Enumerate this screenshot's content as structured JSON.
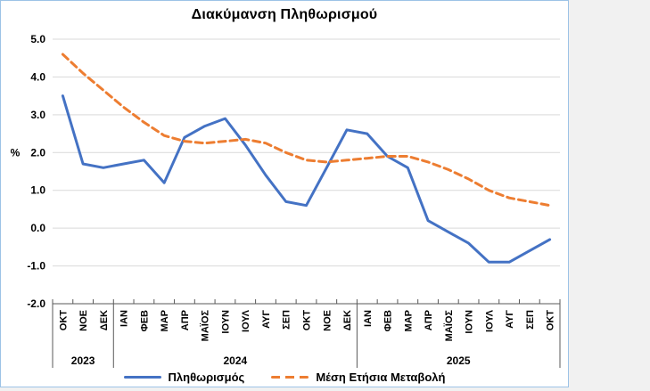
{
  "chart_data": {
    "type": "line",
    "title": "Διακύμανση Πληθωρισμού",
    "ylabel": "%",
    "xlabel": "",
    "ylim": [
      -2.0,
      5.0
    ],
    "ytick_step": 1.0,
    "ytick_labels": [
      "5.0",
      "4.0",
      "3.0",
      "2.0",
      "1.0",
      "0.0",
      "-1.0",
      "-2.0"
    ],
    "grid": true,
    "legend_position": "bottom",
    "categories": [
      "ΟΚΤ",
      "ΝΟΕ",
      "ΔΕΚ",
      "ΙΑΝ",
      "ΦΕΒ",
      "ΜΑΡ",
      "ΑΠΡ",
      "ΜΑΪΟΣ",
      "ΙΟΥΝ",
      "ΙΟΥΛ",
      "ΑΥΓ",
      "ΣΕΠ",
      "ΟΚΤ",
      "ΝΟΕ",
      "ΔΕΚ",
      "ΙΑΝ",
      "ΦΕΒ",
      "ΜΑΡ",
      "ΑΠΡ",
      "ΜΑΪΟΣ",
      "ΙΟΥΝ",
      "ΙΟΥΛ",
      "ΑΥΓ",
      "ΣΕΠ",
      "ΟΚΤ"
    ],
    "year_groups": [
      {
        "label": "2023",
        "start": 0,
        "end": 3
      },
      {
        "label": "2024",
        "start": 3,
        "end": 15
      },
      {
        "label": "2025",
        "start": 15,
        "end": 25
      }
    ],
    "series": [
      {
        "name": "Πληθωρισμός",
        "style": "solid",
        "color": "#4472C4",
        "values": [
          3.5,
          1.7,
          1.6,
          1.7,
          1.8,
          1.2,
          2.4,
          2.7,
          2.9,
          2.2,
          1.4,
          0.7,
          0.6,
          1.6,
          2.6,
          2.5,
          1.9,
          1.6,
          0.2,
          -0.1,
          -0.4,
          -0.9,
          -0.9,
          -0.6,
          -0.3
        ]
      },
      {
        "name": "Μέση Ετήσια Μεταβολή",
        "style": "dashed",
        "color": "#ED7D31",
        "values": [
          4.6,
          4.1,
          3.65,
          3.2,
          2.8,
          2.45,
          2.3,
          2.25,
          2.3,
          2.35,
          2.25,
          2.0,
          1.8,
          1.75,
          1.8,
          1.85,
          1.9,
          1.9,
          1.75,
          1.55,
          1.3,
          1.0,
          0.8,
          0.7,
          0.6
        ]
      }
    ]
  },
  "colors": {
    "series_blue": "#4472C4",
    "series_orange": "#ED7D31",
    "gridline": "#D9D9D9",
    "axis": "#595959",
    "chart_border": "#9DC3E6",
    "chart_background": "#FFFFFF",
    "page_background": "#F1F1F1",
    "text": "#000000"
  }
}
